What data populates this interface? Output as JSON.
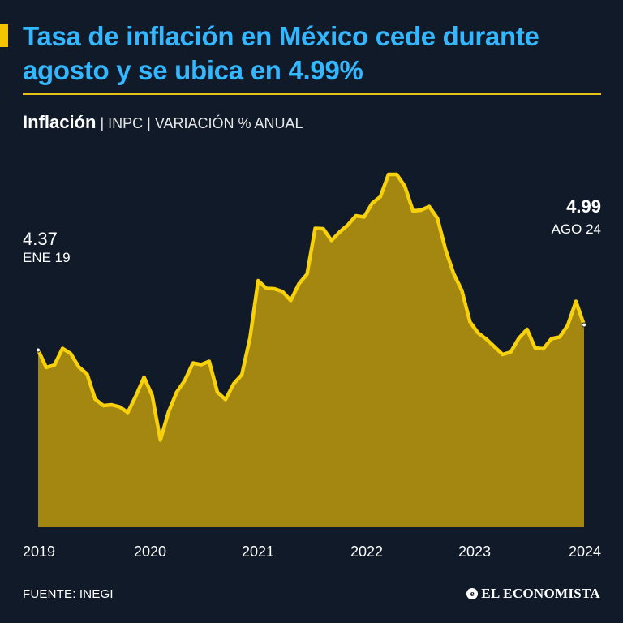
{
  "header": {
    "title": "Tasa de inflación en México cede durante agosto y se ubica en 4.99%",
    "subtitle_bold": "Inflación",
    "subtitle_rest": " | INPC | VARIACIÓN % ANUAL"
  },
  "colors": {
    "background": "#101a29",
    "title": "#33b7ff",
    "accent": "#f5c400",
    "line": "#f7d10b",
    "area": "#a38710"
  },
  "chart_data": {
    "type": "area",
    "title": "Inflación | INPC | VARIACIÓN % ANUAL",
    "xlabel": "",
    "ylabel": "",
    "ylim": [
      0,
      10
    ],
    "grid": false,
    "x_ticks": [
      "2019",
      "2020",
      "2021",
      "2022",
      "2023",
      "2024"
    ],
    "annotations": [
      {
        "value": "4.37",
        "label": "ENE 19",
        "index": 0,
        "position": "above"
      },
      {
        "value": "4.99",
        "label": "AGO 24",
        "index": 67,
        "position": "above"
      }
    ],
    "series": [
      {
        "name": "Inflación anual",
        "start": "2019-01",
        "frequency": "monthly",
        "values": [
          4.37,
          3.94,
          4.0,
          4.41,
          4.28,
          3.95,
          3.78,
          3.16,
          3.0,
          3.02,
          2.97,
          2.83,
          3.24,
          3.7,
          3.25,
          2.15,
          2.84,
          3.33,
          3.62,
          4.05,
          4.01,
          4.09,
          3.33,
          3.15,
          3.54,
          3.76,
          4.67,
          6.08,
          5.89,
          5.88,
          5.81,
          5.59,
          6.0,
          6.24,
          7.37,
          7.36,
          7.07,
          7.28,
          7.45,
          7.68,
          7.65,
          7.99,
          8.15,
          8.7,
          8.7,
          8.41,
          7.8,
          7.82,
          7.91,
          7.62,
          6.85,
          6.25,
          5.84,
          5.06,
          4.79,
          4.64,
          4.45,
          4.26,
          4.32,
          4.66,
          4.88,
          4.42,
          4.4,
          4.65,
          4.69,
          4.98,
          5.57,
          4.99
        ]
      }
    ]
  },
  "footer": {
    "source": "FUENTE: INEGI",
    "brand": "EL ECONOMISTA",
    "brand_icon": "e"
  }
}
